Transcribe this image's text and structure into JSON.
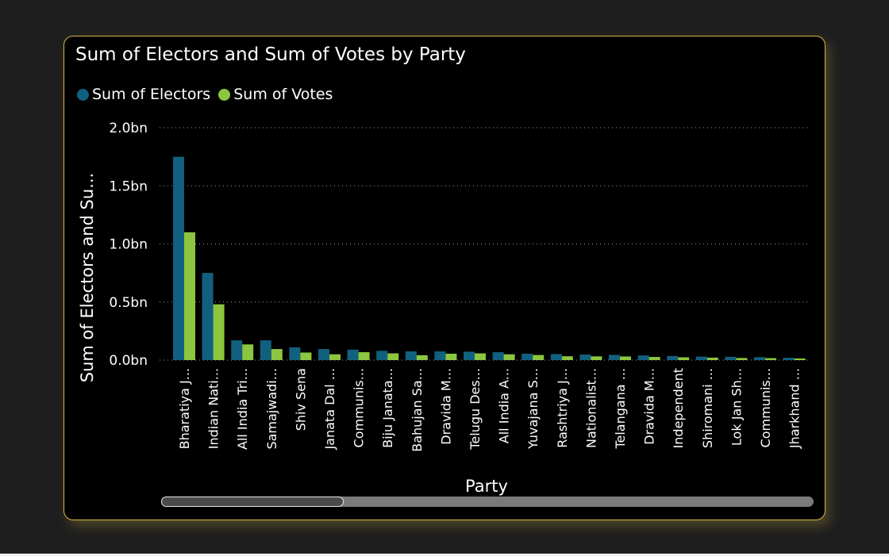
{
  "chart_data": {
    "type": "bar",
    "title": "Sum of Electors and Sum of Votes by Party",
    "xlabel": "Party",
    "ylabel": "Sum of Electors and Su...",
    "ylim": [
      0,
      2000000000
    ],
    "yticks": [
      {
        "value": 0,
        "label": "0.0bn"
      },
      {
        "value": 500000000,
        "label": "0.5bn"
      },
      {
        "value": 1000000000,
        "label": "1.0bn"
      },
      {
        "value": 1500000000,
        "label": "1.5bn"
      },
      {
        "value": 2000000000,
        "label": "2.0bn"
      }
    ],
    "grid": true,
    "legend_position": "top-left",
    "categories": [
      "Bharatiya J...",
      "Indian Nati...",
      "All India Tri...",
      "Samajwadi...",
      "Shiv Sena",
      "Janata Dal ...",
      "Communis...",
      "Biju Janata...",
      "Bahujan Sa...",
      "Dravida M...",
      "Telugu Des...",
      "All India A...",
      "Yuvajana S...",
      "Rashtriya J...",
      "Nationalist...",
      "Telangana ...",
      "Dravida M...",
      "Independent",
      "Shiromani ...",
      "Lok Jan Sh...",
      "Communis...",
      "Jharkhand ..."
    ],
    "series": [
      {
        "name": "Sum of Electors",
        "color": "#12607f",
        "values": [
          1750000000,
          750000000,
          170000000,
          170000000,
          110000000,
          95000000,
          90000000,
          80000000,
          75000000,
          75000000,
          72000000,
          68000000,
          55000000,
          52000000,
          48000000,
          45000000,
          40000000,
          35000000,
          30000000,
          28000000,
          25000000,
          20000000
        ]
      },
      {
        "name": "Sum of Votes",
        "color": "#8cc63f",
        "values": [
          1100000000,
          480000000,
          135000000,
          95000000,
          65000000,
          50000000,
          68000000,
          58000000,
          42000000,
          55000000,
          58000000,
          50000000,
          44000000,
          33000000,
          32000000,
          31000000,
          27000000,
          24000000,
          21000000,
          18000000,
          17000000,
          14000000
        ]
      }
    ]
  }
}
